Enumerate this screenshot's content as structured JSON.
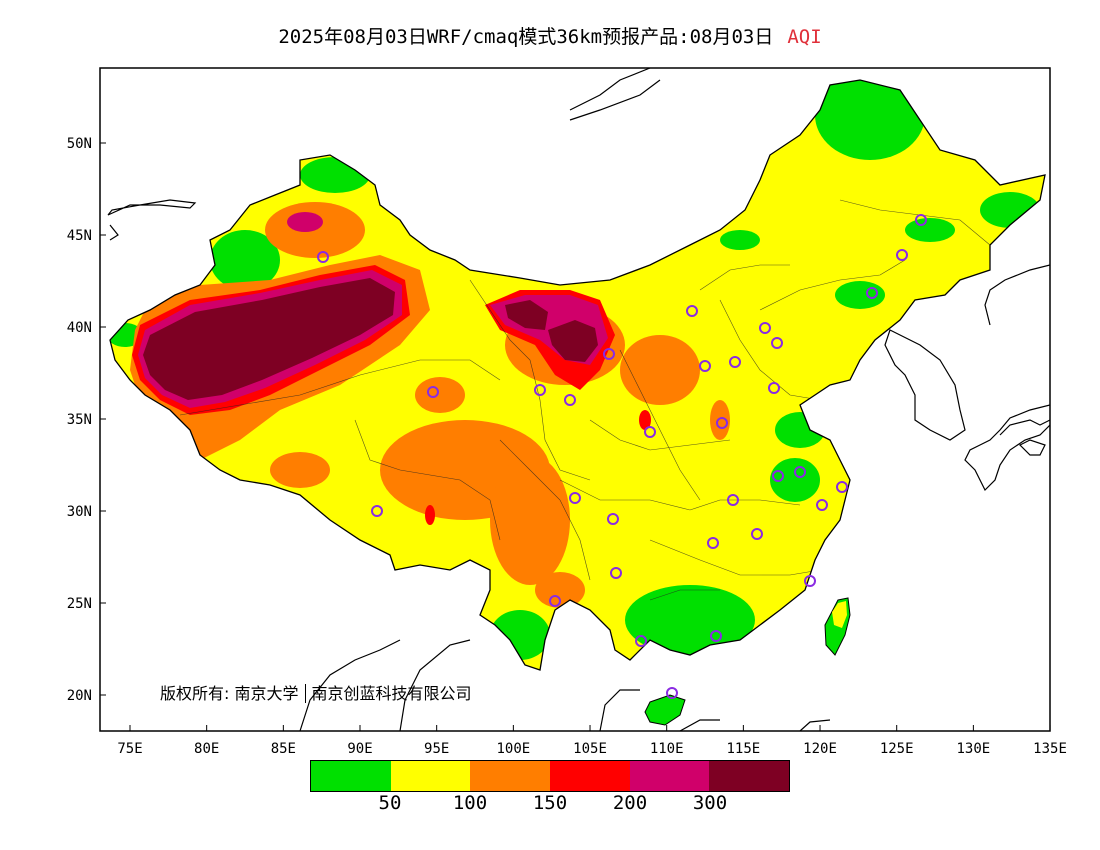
{
  "title": {
    "main": "2025年08月03日WRF/cmaq模式36km预报产品:08月03日",
    "variable": "AQI"
  },
  "map": {
    "lon_ticks": [
      "75E",
      "80E",
      "85E",
      "90E",
      "95E",
      "100E",
      "105E",
      "110E",
      "115E",
      "120E",
      "125E",
      "130E",
      "135E"
    ],
    "lat_ticks": [
      "50N",
      "45N",
      "40N",
      "35N",
      "30N",
      "25N",
      "20N"
    ],
    "copyright_label": "版权所有:",
    "copyright_org1": "南京大学",
    "copyright_org2": "南京创蓝科技有限公司",
    "colors": {
      "good": "#00e000",
      "moderate": "#ffff00",
      "usg": "#ff7e00",
      "unhealthy": "#ff0000",
      "very_unhealthy": "#d0006a",
      "hazardous": "#7e0023",
      "station_marker": "#8a2be2"
    }
  },
  "legend": {
    "colors": [
      "#00e000",
      "#ffff00",
      "#ff7e00",
      "#ff0000",
      "#d0006a",
      "#7e0023"
    ],
    "labels": [
      "50",
      "100",
      "150",
      "200",
      "300"
    ]
  }
}
